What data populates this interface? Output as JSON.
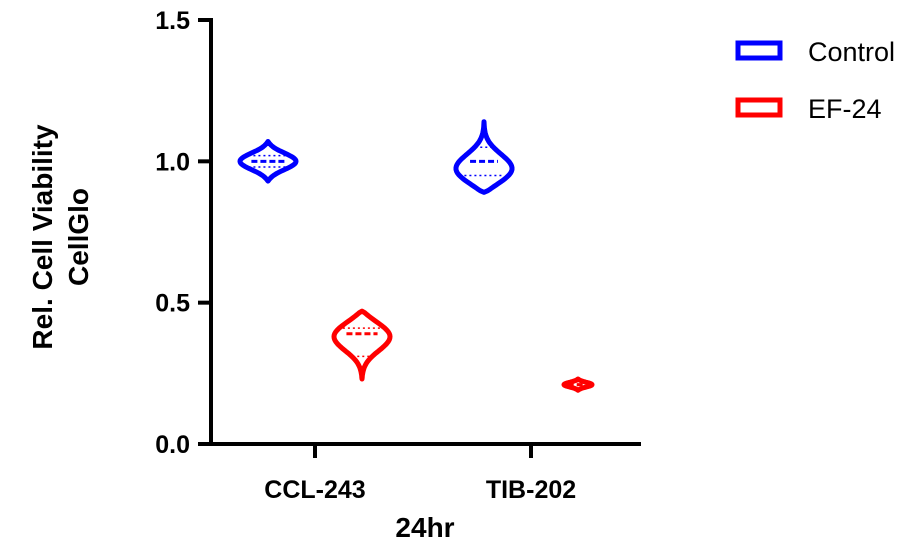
{
  "chart_data": {
    "type": "violin",
    "xlabel": "24hr",
    "ylabel_lines": [
      "Rel. Cell Viability",
      "CellGlo"
    ],
    "ylim": [
      0,
      1.5
    ],
    "yticks": [
      "0.0",
      "0.5",
      "1.0",
      "1.5"
    ],
    "categories": [
      "CCL-243",
      "TIB-202"
    ],
    "grid": false,
    "legend_position": "top-right",
    "series": [
      {
        "name": "Control",
        "color": "#0000ff",
        "violins": [
          {
            "category": "CCL-243",
            "min": 0.93,
            "max": 1.07,
            "median": 1.0,
            "q1": 0.98,
            "q3": 1.02,
            "peak": 1.0
          },
          {
            "category": "TIB-202",
            "min": 0.89,
            "max": 1.14,
            "median": 1.0,
            "q1": 0.95,
            "q3": 1.05,
            "peak": 0.96
          }
        ]
      },
      {
        "name": "EF-24",
        "color": "#ff0000",
        "violins": [
          {
            "category": "CCL-243",
            "min": 0.23,
            "max": 0.47,
            "median": 0.39,
            "q1": 0.31,
            "q3": 0.41,
            "peak": 0.39
          },
          {
            "category": "TIB-202",
            "min": 0.19,
            "max": 0.23,
            "median": 0.21,
            "q1": 0.2,
            "q3": 0.22,
            "peak": 0.21
          }
        ]
      }
    ]
  }
}
